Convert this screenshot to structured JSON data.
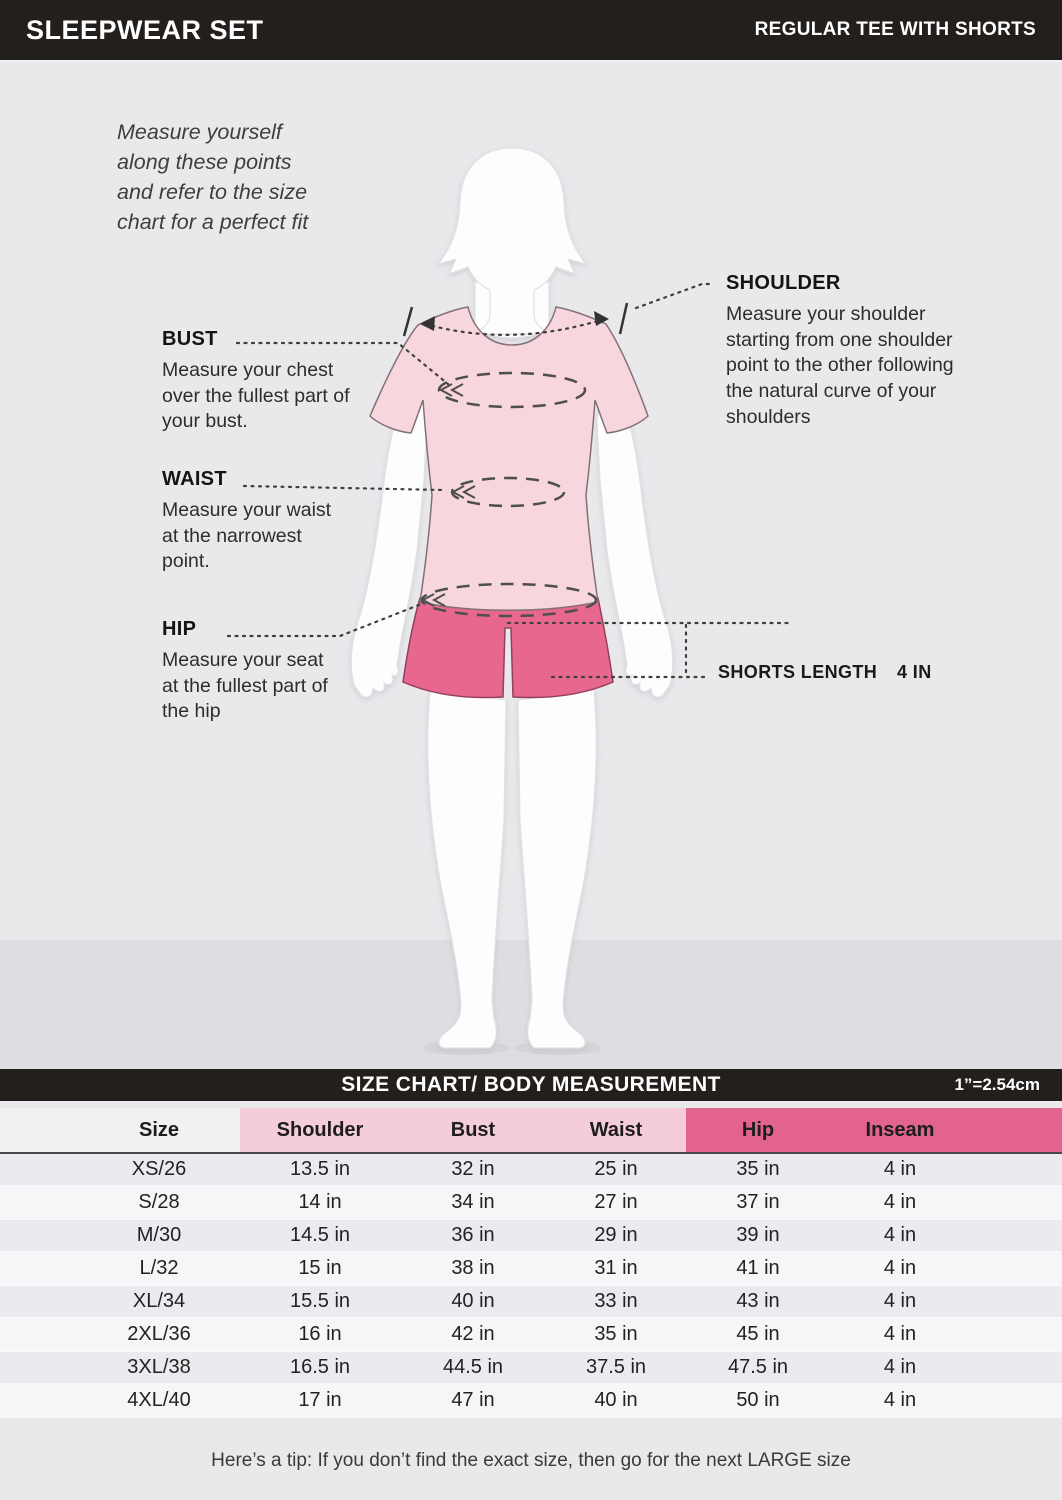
{
  "header": {
    "title": "SLEEPWEAR SET",
    "subtitle": "REGULAR TEE WITH SHORTS"
  },
  "intro": "Measure yourself along these points and refer to the size chart for a perfect fit",
  "annotations": {
    "bust": {
      "label": "BUST",
      "description": "Measure your chest over the fullest part of your bust."
    },
    "waist": {
      "label": "WAIST",
      "description": "Measure your waist at the narrowest point."
    },
    "hip": {
      "label": "HIP",
      "description": "Measure your seat at the fullest part of the hip"
    },
    "shoulder": {
      "label": "SHOULDER",
      "description": "Measure your shoulder starting from one shoulder point to the other following the natural curve of your shoulders"
    },
    "shorts_length": {
      "label": "SHORTS LENGTH",
      "value": "4 IN"
    }
  },
  "size_chart": {
    "title": "SIZE CHART/ BODY MEASUREMENT",
    "unit_note": "1”=2.54cm",
    "columns": [
      "Size",
      "Shoulder",
      "Bust",
      "Waist",
      "Hip",
      "Inseam"
    ],
    "rows": [
      [
        "XS/26",
        "13.5 in",
        "32 in",
        "25 in",
        "35 in",
        "4 in"
      ],
      [
        "S/28",
        "14 in",
        "34 in",
        "27 in",
        "37 in",
        "4 in"
      ],
      [
        "M/30",
        "14.5 in",
        "36 in",
        "29 in",
        "39 in",
        "4 in"
      ],
      [
        "L/32",
        "15 in",
        "38 in",
        "31 in",
        "41 in",
        "4 in"
      ],
      [
        "XL/34",
        "15.5 in",
        "40 in",
        "33 in",
        "43 in",
        "4 in"
      ],
      [
        "2XL/36",
        "16 in",
        "42 in",
        "35 in",
        "45 in",
        "4 in"
      ],
      [
        "3XL/38",
        "16.5 in",
        "44.5 in",
        "37.5 in",
        "47.5 in",
        "4 in"
      ],
      [
        "4XL/40",
        "17 in",
        "47 in",
        "40 in",
        "50 in",
        "4 in"
      ]
    ]
  },
  "footer": {
    "tip": "Here’s a tip: If you don’t find the exact size, then go for the next LARGE size"
  },
  "colors": {
    "bar": "#231f1d",
    "bg": "#e9e9ec",
    "floor": "#dedee2",
    "pink_light": "#f4cdd8",
    "pink_dark": "#e2638e",
    "tee": "#f8d6de",
    "shorts": "#e8678f"
  }
}
